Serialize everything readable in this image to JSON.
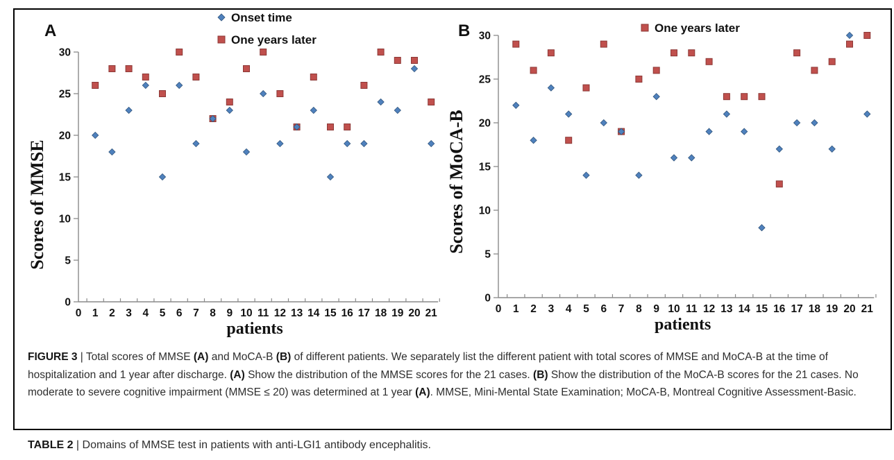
{
  "colors": {
    "onset_fill": "#4F81BD",
    "onset_stroke": "#31557C",
    "later_fill": "#C0504D",
    "later_stroke": "#8C3836",
    "axis_line": "#8a8a8a",
    "tick_text": "#111111",
    "frame": "#000000"
  },
  "figure": {
    "panels": [
      {
        "label": "A",
        "chart_data": {
          "type": "scatter",
          "title": "",
          "xlabel": "patients",
          "ylabel": "Scores of MMSE",
          "xlim": [
            0,
            21
          ],
          "ylim": [
            0,
            30
          ],
          "xticks": [
            0,
            1,
            2,
            3,
            4,
            5,
            6,
            7,
            8,
            9,
            10,
            11,
            12,
            13,
            14,
            15,
            16,
            17,
            18,
            19,
            20,
            21
          ],
          "yticks": [
            0,
            5,
            10,
            15,
            20,
            25,
            30
          ],
          "grid": "off",
          "legend_position": "top-inside",
          "x": [
            1,
            2,
            3,
            4,
            5,
            6,
            7,
            8,
            9,
            10,
            11,
            12,
            13,
            14,
            15,
            16,
            17,
            18,
            19,
            20,
            21
          ],
          "series": [
            {
              "name": "Onset time",
              "marker": "diamond",
              "values": [
                20,
                18,
                23,
                26,
                15,
                26,
                19,
                22,
                23,
                18,
                25,
                19,
                21,
                23,
                15,
                19,
                19,
                24,
                23,
                28,
                19
              ]
            },
            {
              "name": "One years later",
              "marker": "square",
              "values": [
                26,
                28,
                28,
                27,
                25,
                30,
                27,
                22,
                24,
                28,
                30,
                25,
                21,
                27,
                21,
                21,
                26,
                30,
                29,
                29,
                24
              ]
            }
          ]
        },
        "legend": [
          {
            "series_index": 0,
            "label": "Onset time"
          },
          {
            "series_index": 1,
            "label": "One years later"
          }
        ]
      },
      {
        "label": "B",
        "chart_data": {
          "type": "scatter",
          "title": "",
          "xlabel": "patients",
          "ylabel": "Scores of MoCA-B",
          "xlim": [
            0,
            21
          ],
          "ylim": [
            0,
            30
          ],
          "xticks": [
            0,
            1,
            2,
            3,
            4,
            5,
            6,
            7,
            8,
            9,
            10,
            11,
            12,
            13,
            14,
            15,
            16,
            17,
            18,
            19,
            20,
            21
          ],
          "yticks": [
            0,
            5,
            10,
            15,
            20,
            25,
            30
          ],
          "grid": "off",
          "legend_position": "top-inside",
          "x": [
            1,
            2,
            3,
            4,
            5,
            6,
            7,
            8,
            9,
            10,
            11,
            12,
            13,
            14,
            15,
            16,
            17,
            18,
            19,
            20,
            21
          ],
          "series": [
            {
              "name": "Onset time",
              "marker": "diamond",
              "values": [
                22,
                18,
                24,
                21,
                14,
                20,
                19,
                14,
                23,
                16,
                16,
                19,
                21,
                19,
                8,
                17,
                20,
                20,
                17,
                30,
                21
              ]
            },
            {
              "name": "One years later",
              "marker": "square",
              "values": [
                29,
                26,
                28,
                18,
                24,
                29,
                19,
                25,
                26,
                28,
                28,
                27,
                23,
                23,
                23,
                13,
                28,
                26,
                27,
                29,
                30
              ]
            }
          ]
        },
        "legend": [
          {
            "series_index": 1,
            "label": "One years later"
          }
        ]
      }
    ],
    "caption": {
      "segments": [
        {
          "text": "FIGURE 3",
          "bold": true
        },
        {
          "text": " | Total scores of MMSE ",
          "bold": false
        },
        {
          "text": "(A)",
          "bold": true
        },
        {
          "text": " and MoCA-B ",
          "bold": false
        },
        {
          "text": "(B)",
          "bold": true
        },
        {
          "text": " of different patients. We separately list the different patient with total scores of MMSE and MoCA-B at the time of hospitalization and 1 year after discharge. ",
          "bold": false
        },
        {
          "text": "(A)",
          "bold": true
        },
        {
          "text": " Show the distribution of the MMSE scores for the 21 cases. ",
          "bold": false
        },
        {
          "text": "(B)",
          "bold": true
        },
        {
          "text": " Show the distribution of the MoCA-B scores for the 21 cases. No moderate to severe cognitive impairment (MMSE ≤ 20) was determined at 1 year ",
          "bold": false
        },
        {
          "text": "(A)",
          "bold": true
        },
        {
          "text": ". MMSE, Mini-Mental State Examination; MoCA-B, Montreal Cognitive Assessment-Basic.",
          "bold": false
        }
      ]
    }
  },
  "table_heading": {
    "segments": [
      {
        "text": "TABLE 2",
        "bold": true
      },
      {
        "text": " | Domains of MMSE test in patients with anti-LGI1 antibody encephalitis.",
        "bold": false
      }
    ]
  }
}
